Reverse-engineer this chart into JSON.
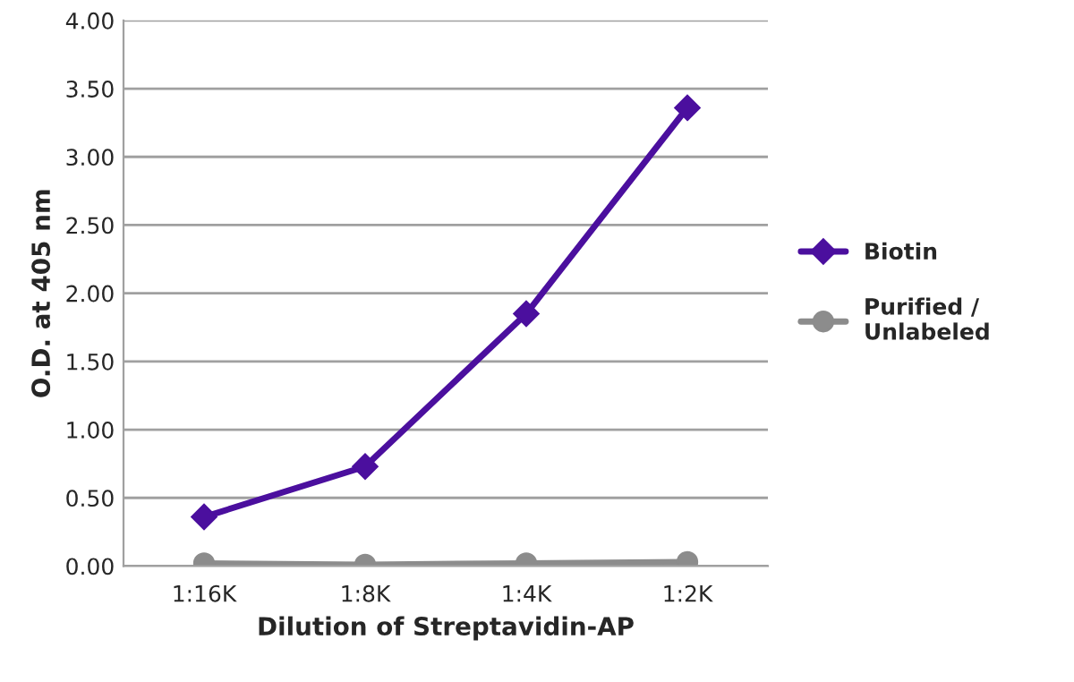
{
  "chart_data": {
    "type": "line",
    "xlabel": "Dilution of Streptavidin-AP",
    "ylabel": "O.D. at 405 nm",
    "categories": [
      "1:16K",
      "1:8K",
      "1:4K",
      "1:2K"
    ],
    "series": [
      {
        "name": "Biotin",
        "color": "#4b0f9e",
        "marker": "diamond",
        "values": [
          0.36,
          0.73,
          1.85,
          3.36
        ]
      },
      {
        "name": "Purified /\nUnlabeled",
        "color": "#8c8c8c",
        "marker": "circle",
        "values": [
          0.02,
          0.01,
          0.02,
          0.03
        ]
      }
    ],
    "ylim": [
      0,
      4
    ],
    "yticks": [
      {
        "value": 0,
        "label": "0.00"
      },
      {
        "value": 0.5,
        "label": "0.50"
      },
      {
        "value": 1,
        "label": "1.00"
      },
      {
        "value": 1.5,
        "label": "1.50"
      },
      {
        "value": 2,
        "label": "2.00"
      },
      {
        "value": 2.5,
        "label": "2.50"
      },
      {
        "value": 3,
        "label": "3.00"
      },
      {
        "value": 3.5,
        "label": "3.50"
      },
      {
        "value": 4,
        "label": "4.00"
      }
    ],
    "grid": "y",
    "legend": "right",
    "line_style": "solid"
  }
}
